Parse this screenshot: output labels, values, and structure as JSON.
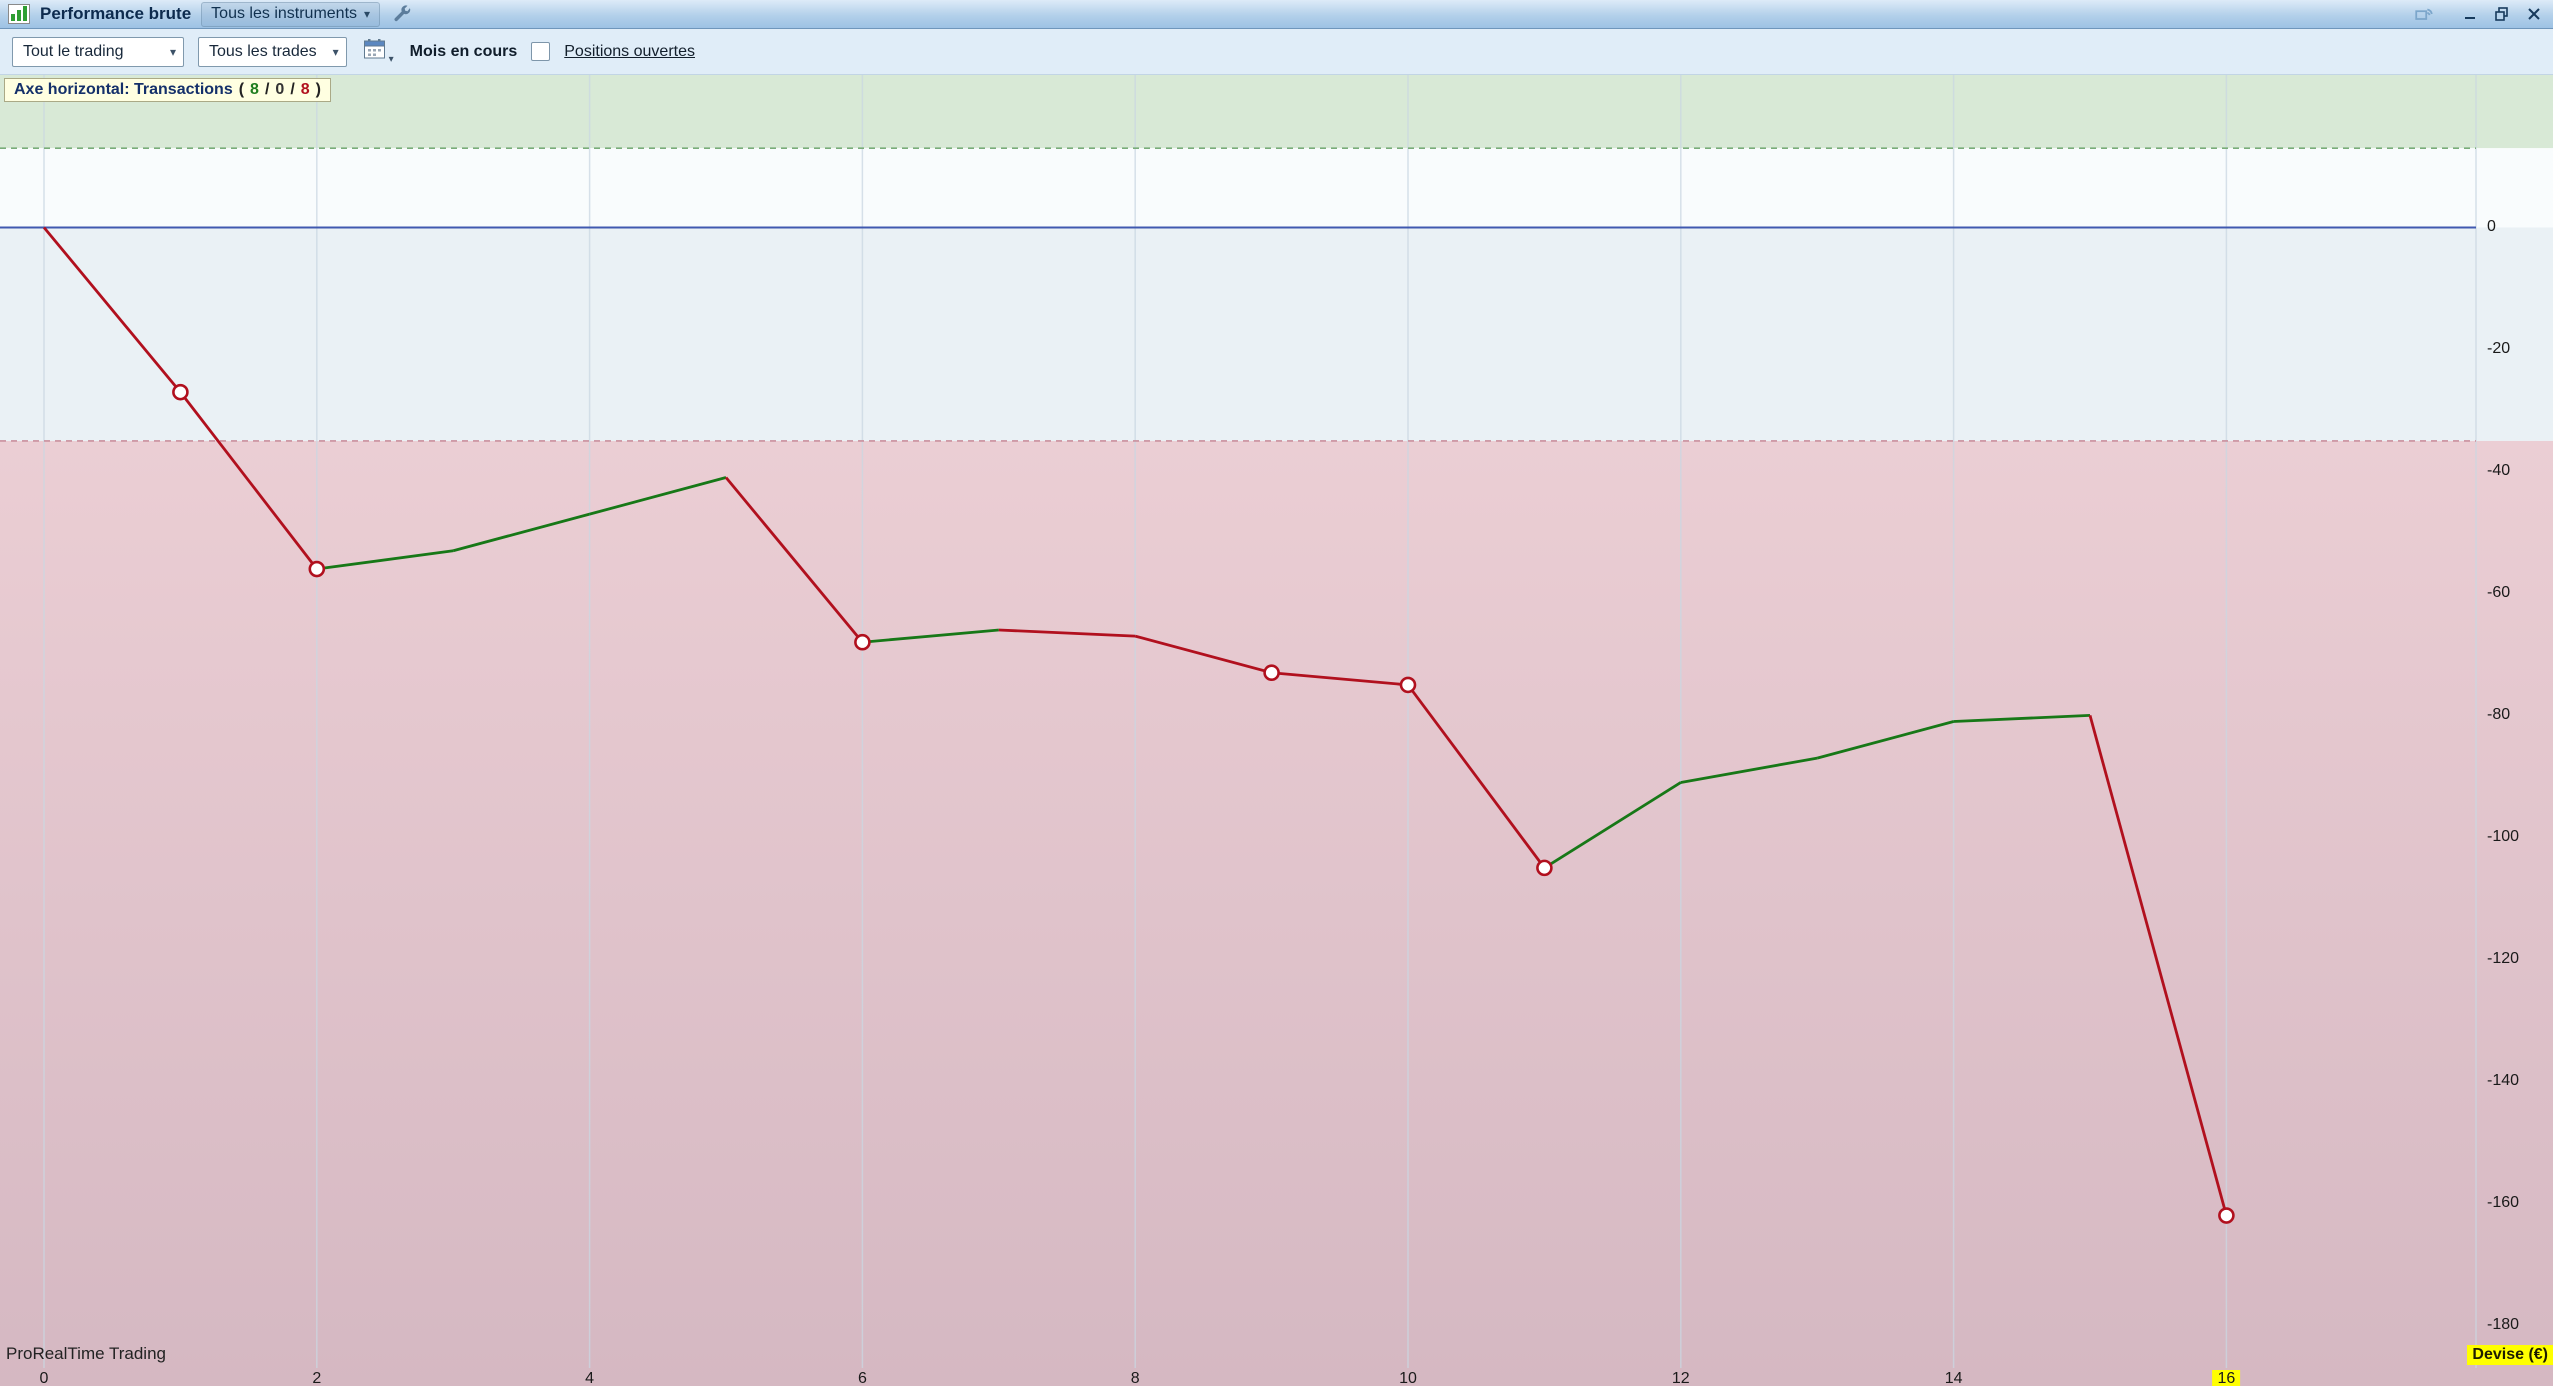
{
  "title_bar": {
    "title": "Performance brute",
    "instruments_button": "Tous les instruments",
    "icons": {
      "app_icon": "green-bar-chart-icon",
      "settings_icon": "wrench-icon",
      "share_icon": "share-window-icon",
      "minimize_icon": "minimize-icon",
      "maximize_icon": "maximize-icon",
      "close_icon": "close-icon"
    }
  },
  "toolbar": {
    "trading_scope_select": {
      "value": "Tout le trading"
    },
    "trades_filter_select": {
      "value": "Tous les trades"
    },
    "calendar_icon": "calendar-icon",
    "period_label": "Mois en cours",
    "open_positions": {
      "label": "Positions ouvertes",
      "checked": false
    }
  },
  "axis_note": {
    "label": "Axe horizontal: Transactions",
    "open": "(",
    "wins": "8",
    "separator1": "/",
    "neutral": "0",
    "separator2": "/",
    "losses": "8",
    "close": ")"
  },
  "watermark": "ProRealTime Trading",
  "axis": {
    "currency_label": "Devise (€)",
    "x_highlight": "16"
  },
  "chart_data": {
    "type": "line",
    "title": "Performance brute",
    "x_axis_label": "Transactions",
    "y_axis_label": "Devise (€)",
    "x": [
      0,
      1,
      2,
      3,
      4,
      5,
      6,
      7,
      8,
      9,
      10,
      11,
      12,
      13,
      14,
      15,
      16
    ],
    "values": [
      0,
      -27,
      -56,
      -53,
      -47,
      -41,
      -68,
      -66,
      -67,
      -73,
      -75,
      -105,
      -91,
      -87,
      -81,
      -80,
      -162
    ],
    "segment_results": [
      "loss",
      "loss",
      "gain",
      "gain",
      "gain",
      "loss",
      "gain",
      "loss",
      "loss",
      "loss",
      "loss",
      "gain",
      "gain",
      "gain",
      "gain",
      "loss"
    ],
    "marker_indices": [
      1,
      2,
      6,
      9,
      10,
      11,
      16
    ],
    "x_ticks": [
      0,
      2,
      4,
      6,
      8,
      10,
      12,
      14,
      16
    ],
    "y_ticks": [
      0,
      -20,
      -40,
      -60,
      -80,
      -100,
      -120,
      -140,
      -160,
      -180
    ],
    "ylim": [
      25,
      -187
    ],
    "zones": {
      "green_zone_above": 13,
      "red_zone_below": -35
    },
    "trade_counts": {
      "wins": 8,
      "neutral": 0,
      "losses": 8
    },
    "legend": "none",
    "grid": "vertical",
    "colors": {
      "gain": "#177817",
      "loss": "#b1101e",
      "zero_line": "#4059b0",
      "green_zone": "#d8e9d6",
      "above_zero_zone": "#f9fcfd",
      "below_zero_zone": "#eaf1f5",
      "red_zone_top": "#ebced4",
      "red_zone_bottom": "#d5b8c2",
      "green_dash": "#79ad79",
      "red_dash": "#c98f9d",
      "gridline": "#c9d7e1",
      "x_highlight_bg": "#ffff00"
    }
  }
}
